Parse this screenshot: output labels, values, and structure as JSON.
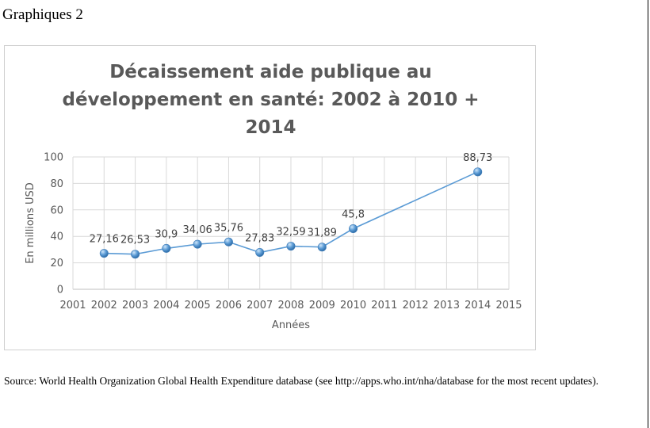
{
  "page": {
    "heading": "Graphiques 2",
    "source_note": "Source: World Health Organization Global Health Expenditure database (see http://apps.who.int/nha/database for the most recent updates)."
  },
  "chart_data": {
    "type": "line",
    "title_lines": [
      "Décaissement aide publique au",
      "développement en santé: 2002 à 2010 +",
      "2014"
    ],
    "xlabel": "Années",
    "ylabel": "En millions USD",
    "xlim": [
      2001,
      2015
    ],
    "ylim": [
      0,
      100
    ],
    "x_ticks": [
      2001,
      2002,
      2003,
      2004,
      2005,
      2006,
      2007,
      2008,
      2009,
      2010,
      2011,
      2012,
      2013,
      2014,
      2015
    ],
    "y_ticks": [
      0,
      20,
      40,
      60,
      80,
      100
    ],
    "grid": true,
    "legend": "none",
    "series": [
      {
        "color": "#5b9bd5",
        "points": [
          {
            "x": 2002,
            "y": 27.16,
            "label": "27,16"
          },
          {
            "x": 2003,
            "y": 26.53,
            "label": "26,53"
          },
          {
            "x": 2004,
            "y": 30.9,
            "label": "30,9"
          },
          {
            "x": 2005,
            "y": 34.06,
            "label": "34,06"
          },
          {
            "x": 2006,
            "y": 35.76,
            "label": "35,76"
          },
          {
            "x": 2007,
            "y": 27.83,
            "label": "27,83"
          },
          {
            "x": 2008,
            "y": 32.59,
            "label": "32,59"
          },
          {
            "x": 2009,
            "y": 31.89,
            "label": "31,89"
          },
          {
            "x": 2010,
            "y": 45.8,
            "label": "45,8"
          },
          {
            "x": 2014,
            "y": 88.73,
            "label": "88,73"
          }
        ]
      }
    ]
  }
}
